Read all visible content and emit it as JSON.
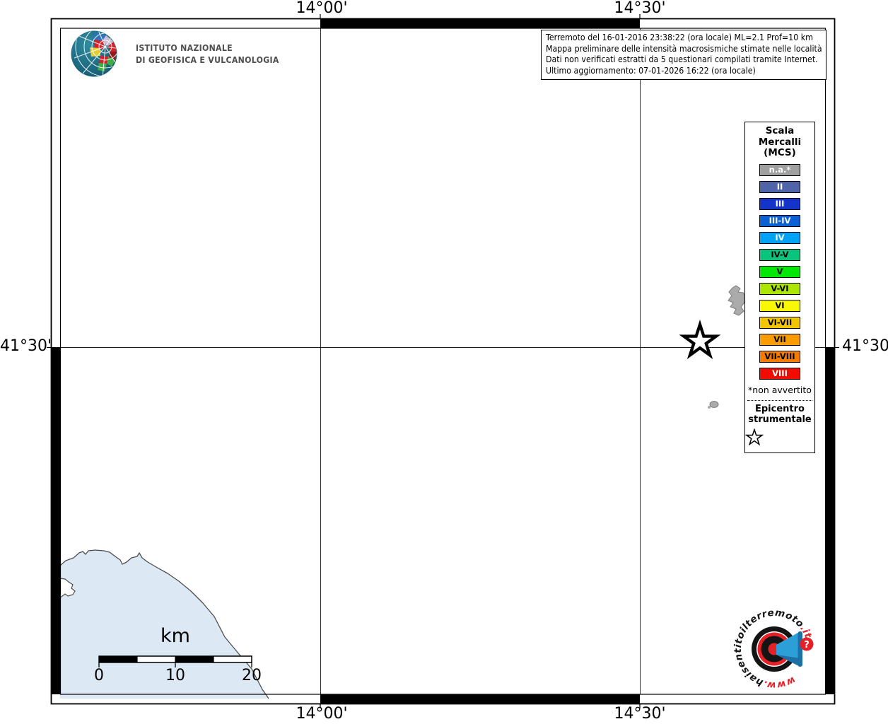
{
  "branding": {
    "institute_line1": "ISTITUTO NAZIONALE",
    "institute_line2": "DI GEOFISICA E VULCANOLOGIA"
  },
  "info_box": {
    "lines": [
      "Terremoto del 16-01-2016 23:38:22 (ora locale) ML=2.1 Prof=10 km",
      "Mappa preliminare delle intensità macrosismiche stimate nelle località",
      "Dati non verificati estratti da 5 questionari compilati tramite Internet.",
      "Ultimo aggiornamento: 07-01-2026 16:22 (ora locale)"
    ]
  },
  "axes": {
    "top_left": "14°00'",
    "top_right": "14°30'",
    "bottom_left": "14°00'",
    "bottom_right": "14°30'",
    "left": "41°30'",
    "right": "41°30'"
  },
  "scalebar": {
    "unit": "km",
    "tick0": "0",
    "tick1": "10",
    "tick2": "20"
  },
  "legend": {
    "title_lines": [
      "Scala",
      "Mercalli",
      "(MCS)"
    ],
    "items": [
      {
        "label": "n.a.*",
        "color": "#a0a0a0",
        "text_color": "#ffffff"
      },
      {
        "label": "II",
        "color": "#5064aa",
        "text_color": "#ffffff"
      },
      {
        "label": "III",
        "color": "#1433c8",
        "text_color": "#ffffff"
      },
      {
        "label": "III-IV",
        "color": "#0c60d4",
        "text_color": "#ffffff"
      },
      {
        "label": "IV",
        "color": "#00a2f4",
        "text_color": "#ffffff"
      },
      {
        "label": "IV-V",
        "color": "#0ac47d",
        "text_color": "#000000"
      },
      {
        "label": "V",
        "color": "#00e606",
        "text_color": "#000000"
      },
      {
        "label": "V-VI",
        "color": "#aae600",
        "text_color": "#000000"
      },
      {
        "label": "VI",
        "color": "#f8f800",
        "text_color": "#000000"
      },
      {
        "label": "VI-VII",
        "color": "#f2c500",
        "text_color": "#000000"
      },
      {
        "label": "VII",
        "color": "#f89c00",
        "text_color": "#000000"
      },
      {
        "label": "VII-VIII",
        "color": "#f27b00",
        "text_color": "#000000"
      },
      {
        "label": "VIII",
        "color": "#f20c00",
        "text_color": "#ffffff"
      }
    ],
    "footnote": "*non avvertito",
    "epicenter_label_lines": [
      "Epicentro",
      "strumentale"
    ]
  },
  "watermark": {
    "www": "www.",
    "domain": "haisentitoilterremoto",
    "tld": ".it",
    "question_mark": "?",
    "red": "#e32127",
    "blue": "#2d9fd8"
  },
  "map": {
    "sea_color": "#dce9f5",
    "island_color": "#ababab"
  }
}
